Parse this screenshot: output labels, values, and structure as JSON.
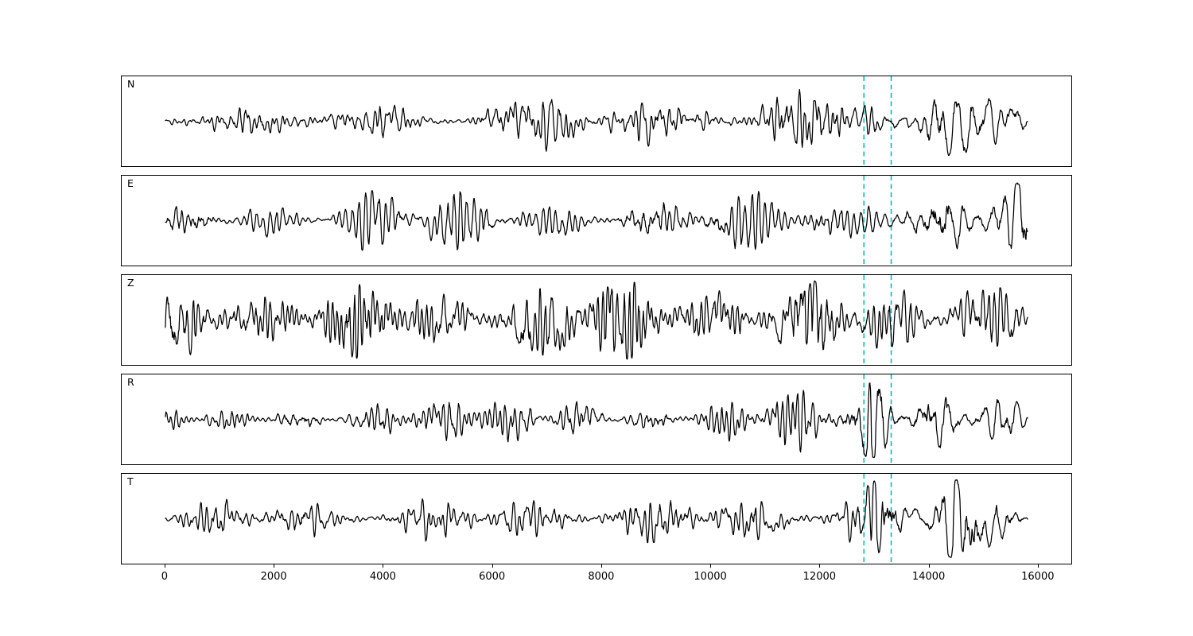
{
  "figure": {
    "background": "#ffffff",
    "trace_color": "#000000",
    "event_marker_color": "#00bfbf"
  },
  "chart_data": {
    "type": "line",
    "title": "",
    "xlabel": "",
    "ylabel": "",
    "legend": null,
    "grid": false,
    "xlim": [
      -800,
      16600
    ],
    "x_data_range": [
      0,
      15800
    ],
    "x_ticks": [
      0,
      2000,
      4000,
      6000,
      8000,
      10000,
      12000,
      14000,
      16000
    ],
    "vlines": [
      12800,
      13300
    ],
    "vline_style": "dashed",
    "panels": [
      {
        "label": "N",
        "coda_freq_factor": 0.5,
        "envelope": [
          [
            0,
            0.28
          ],
          [
            3000,
            0.24
          ],
          [
            3600,
            0.14
          ],
          [
            4000,
            0.26
          ],
          [
            5600,
            0.22
          ],
          [
            5800,
            0.38
          ],
          [
            6400,
            0.26
          ],
          [
            7200,
            0.42
          ],
          [
            8200,
            0.34
          ],
          [
            9000,
            0.45
          ],
          [
            9600,
            0.3
          ],
          [
            11000,
            0.4
          ],
          [
            12600,
            0.3
          ],
          [
            12750,
            0.35
          ],
          [
            12850,
            1.05
          ],
          [
            13050,
            1.1
          ],
          [
            13300,
            0.6
          ],
          [
            13500,
            0.35
          ],
          [
            13800,
            0.5
          ],
          [
            14100,
            1.0
          ],
          [
            14400,
            0.7
          ],
          [
            14700,
            0.9
          ],
          [
            15000,
            0.55
          ],
          [
            15300,
            0.75
          ],
          [
            15600,
            0.8
          ],
          [
            15800,
            0.5
          ]
        ]
      },
      {
        "label": "E",
        "coda_freq_factor": 0.5,
        "envelope": [
          [
            0,
            0.18
          ],
          [
            600,
            0.3
          ],
          [
            1500,
            0.35
          ],
          [
            3000,
            0.3
          ],
          [
            4200,
            0.42
          ],
          [
            5000,
            0.35
          ],
          [
            6000,
            0.4
          ],
          [
            7000,
            0.35
          ],
          [
            7600,
            0.45
          ],
          [
            8600,
            0.35
          ],
          [
            9600,
            0.4
          ],
          [
            10600,
            0.35
          ],
          [
            11600,
            0.42
          ],
          [
            12600,
            0.4
          ],
          [
            12800,
            0.5
          ],
          [
            12950,
            1.0
          ],
          [
            13250,
            0.95
          ],
          [
            13500,
            0.45
          ],
          [
            14000,
            0.5
          ],
          [
            14300,
            1.1
          ],
          [
            14600,
            0.8
          ],
          [
            15000,
            0.6
          ],
          [
            15400,
            0.55
          ],
          [
            15700,
            0.75
          ],
          [
            15800,
            0.5
          ]
        ]
      },
      {
        "label": "Z",
        "coda_freq_factor": 0.8,
        "envelope": [
          [
            0,
            0.45
          ],
          [
            400,
            0.65
          ],
          [
            800,
            0.75
          ],
          [
            1600,
            0.6
          ],
          [
            2400,
            0.65
          ],
          [
            3200,
            0.6
          ],
          [
            4000,
            0.65
          ],
          [
            4800,
            0.55
          ],
          [
            5600,
            0.6
          ],
          [
            5800,
            1.05
          ],
          [
            6200,
            0.8
          ],
          [
            6600,
            1.0
          ],
          [
            7000,
            0.8
          ],
          [
            7400,
            0.9
          ],
          [
            8000,
            0.75
          ],
          [
            8700,
            0.8
          ],
          [
            9500,
            0.7
          ],
          [
            10300,
            0.75
          ],
          [
            11000,
            0.7
          ],
          [
            11800,
            0.8
          ],
          [
            12600,
            0.7
          ],
          [
            13000,
            0.75
          ],
          [
            13400,
            0.65
          ],
          [
            13800,
            0.6
          ],
          [
            14200,
            0.75
          ],
          [
            14600,
            0.9
          ],
          [
            15000,
            0.6
          ],
          [
            15400,
            0.65
          ],
          [
            15800,
            0.5
          ]
        ]
      },
      {
        "label": "R",
        "coda_freq_factor": 0.5,
        "envelope": [
          [
            0,
            0.15
          ],
          [
            400,
            0.3
          ],
          [
            1200,
            0.25
          ],
          [
            2000,
            0.28
          ],
          [
            3000,
            0.22
          ],
          [
            4000,
            0.25
          ],
          [
            5000,
            0.22
          ],
          [
            5700,
            0.35
          ],
          [
            6400,
            0.25
          ],
          [
            7200,
            0.4
          ],
          [
            7600,
            0.45
          ],
          [
            8400,
            0.3
          ],
          [
            9000,
            0.35
          ],
          [
            9800,
            0.25
          ],
          [
            10600,
            0.35
          ],
          [
            11400,
            0.4
          ],
          [
            12200,
            0.35
          ],
          [
            12700,
            0.25
          ],
          [
            12850,
            1.05
          ],
          [
            13100,
            1.1
          ],
          [
            13350,
            0.6
          ],
          [
            13600,
            0.35
          ],
          [
            14000,
            0.6
          ],
          [
            14300,
            0.8
          ],
          [
            14700,
            0.65
          ],
          [
            15000,
            0.75
          ],
          [
            15400,
            0.6
          ],
          [
            15800,
            0.45
          ]
        ]
      },
      {
        "label": "T",
        "coda_freq_factor": 0.5,
        "envelope": [
          [
            0,
            0.2
          ],
          [
            800,
            0.25
          ],
          [
            1600,
            0.22
          ],
          [
            2400,
            0.28
          ],
          [
            3200,
            0.22
          ],
          [
            4000,
            0.25
          ],
          [
            4800,
            0.28
          ],
          [
            5600,
            0.25
          ],
          [
            6400,
            0.3
          ],
          [
            7200,
            0.28
          ],
          [
            7800,
            0.35
          ],
          [
            8600,
            0.3
          ],
          [
            9400,
            0.35
          ],
          [
            10200,
            0.3
          ],
          [
            11000,
            0.35
          ],
          [
            11800,
            0.32
          ],
          [
            12600,
            0.35
          ],
          [
            12800,
            0.45
          ],
          [
            12950,
            0.8
          ],
          [
            13200,
            0.7
          ],
          [
            13500,
            0.4
          ],
          [
            13900,
            0.5
          ],
          [
            14200,
            0.9
          ],
          [
            14450,
            1.15
          ],
          [
            14800,
            0.75
          ],
          [
            15200,
            0.6
          ],
          [
            15600,
            0.85
          ],
          [
            15800,
            0.45
          ]
        ]
      }
    ]
  }
}
